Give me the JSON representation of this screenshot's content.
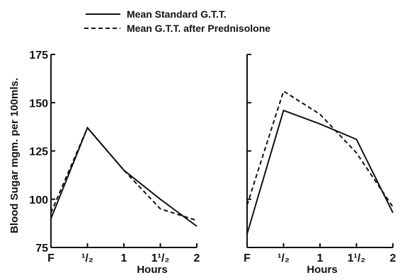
{
  "chart_data": [
    {
      "type": "line",
      "panel": "left",
      "categories": [
        "F",
        "1/2",
        "1",
        "1 1/2",
        "2"
      ],
      "series": [
        {
          "name": "Mean Standard G.T.T.",
          "style": "solid",
          "values": [
            90,
            137,
            115,
            100,
            86
          ]
        },
        {
          "name": "Mean G.T.T. after Prednisolone",
          "style": "dashed",
          "values": [
            93,
            137,
            115,
            95,
            89
          ]
        }
      ],
      "ylim": [
        75,
        175
      ],
      "yticks": [
        75,
        100,
        125,
        150,
        175
      ],
      "ylabel": "Blood Sugar mgm. per 100mls.",
      "xlabel": "Hours",
      "legend": "top"
    },
    {
      "type": "line",
      "panel": "right",
      "categories": [
        "F",
        "1/2",
        "1",
        "1 1/2",
        "2"
      ],
      "series": [
        {
          "name": "Mean Standard G.T.T.",
          "style": "solid",
          "values": [
            82,
            146,
            139,
            131,
            93
          ]
        },
        {
          "name": "Mean G.T.T. after Prednisolone",
          "style": "dashed",
          "values": [
            97,
            156,
            144,
            124,
            96
          ]
        }
      ],
      "ylim": [
        75,
        175
      ],
      "xlabel": "Hours"
    }
  ],
  "legend": {
    "solid_label": "Mean Standard G.T.T.",
    "dashed_label": "Mean G.T.T. after Prednisolone"
  },
  "tick_labels": {
    "x": [
      "F",
      "¹/₂",
      "1",
      "1¹/₂",
      "2"
    ],
    "y": [
      "75",
      "100",
      "125",
      "150",
      "175"
    ]
  },
  "axis_labels": {
    "y": "Blood Sugar mgm. per 100mls.",
    "x": "Hours"
  }
}
